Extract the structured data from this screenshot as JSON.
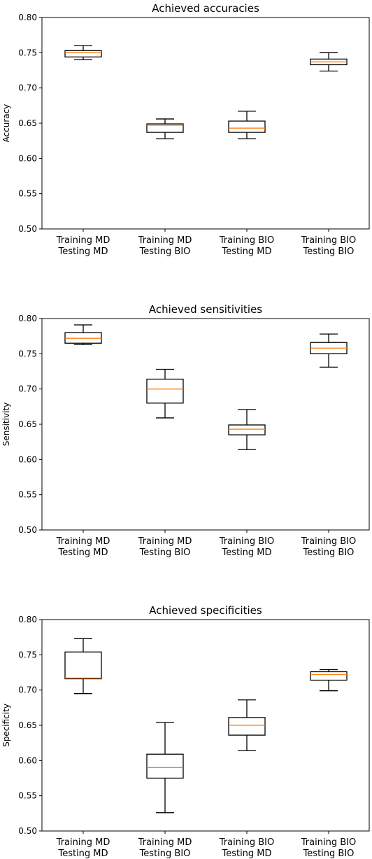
{
  "chart_data": [
    {
      "type": "box",
      "title": "Achieved accuracies",
      "ylabel": "Accuracy",
      "ylim": [
        0.5,
        0.8
      ],
      "yticks": [
        "0.50",
        "0.55",
        "0.60",
        "0.65",
        "0.70",
        "0.75",
        "0.80"
      ],
      "categories": [
        [
          "Training MD",
          "Testing MD"
        ],
        [
          "Training MD",
          "Testing BIO"
        ],
        [
          "Training BIO",
          "Testing MD"
        ],
        [
          "Training BIO",
          "Testing BIO"
        ]
      ],
      "boxes": [
        {
          "whisker_low": 0.74,
          "q1": 0.744,
          "median": 0.75,
          "q3": 0.753,
          "whisker_high": 0.76
        },
        {
          "whisker_low": 0.628,
          "q1": 0.637,
          "median": 0.647,
          "q3": 0.649,
          "whisker_high": 0.656
        },
        {
          "whisker_low": 0.628,
          "q1": 0.637,
          "median": 0.643,
          "q3": 0.653,
          "whisker_high": 0.667
        },
        {
          "whisker_low": 0.724,
          "q1": 0.733,
          "median": 0.737,
          "q3": 0.741,
          "whisker_high": 0.75
        }
      ]
    },
    {
      "type": "box",
      "title": "Achieved sensitivities",
      "ylabel": "Sensitivity",
      "ylim": [
        0.5,
        0.8
      ],
      "yticks": [
        "0.50",
        "0.55",
        "0.60",
        "0.65",
        "0.70",
        "0.75",
        "0.80"
      ],
      "categories": [
        [
          "Training MD",
          "Testing MD"
        ],
        [
          "Training MD",
          "Testing BIO"
        ],
        [
          "Training BIO",
          "Testing MD"
        ],
        [
          "Training BIO",
          "Testing BIO"
        ]
      ],
      "boxes": [
        {
          "whisker_low": 0.763,
          "q1": 0.765,
          "median": 0.772,
          "q3": 0.78,
          "whisker_high": 0.791
        },
        {
          "whisker_low": 0.659,
          "q1": 0.68,
          "median": 0.7,
          "q3": 0.714,
          "whisker_high": 0.728
        },
        {
          "whisker_low": 0.614,
          "q1": 0.635,
          "median": 0.643,
          "q3": 0.649,
          "whisker_high": 0.671
        },
        {
          "whisker_low": 0.731,
          "q1": 0.75,
          "median": 0.758,
          "q3": 0.766,
          "whisker_high": 0.778
        }
      ]
    },
    {
      "type": "box",
      "title": "Achieved specificities",
      "ylabel": "Specificity",
      "ylim": [
        0.5,
        0.8
      ],
      "yticks": [
        "0.50",
        "0.55",
        "0.60",
        "0.65",
        "0.70",
        "0.75",
        "0.80"
      ],
      "categories": [
        [
          "Training MD",
          "Testing MD"
        ],
        [
          "Training MD",
          "Testing BIO"
        ],
        [
          "Training BIO",
          "Testing MD"
        ],
        [
          "Training BIO",
          "Testing BIO"
        ]
      ],
      "boxes": [
        {
          "whisker_low": 0.695,
          "q1": 0.716,
          "median": 0.717,
          "q3": 0.754,
          "whisker_high": 0.773
        },
        {
          "whisker_low": 0.526,
          "q1": 0.575,
          "median": 0.59,
          "q3": 0.609,
          "whisker_high": 0.654
        },
        {
          "whisker_low": 0.614,
          "q1": 0.636,
          "median": 0.65,
          "q3": 0.661,
          "whisker_high": 0.686
        },
        {
          "whisker_low": 0.699,
          "q1": 0.714,
          "median": 0.722,
          "q3": 0.726,
          "whisker_high": 0.729
        }
      ]
    }
  ],
  "colors": {
    "median": "#ff7f0e",
    "box": "#000000",
    "axes": "#000000",
    "background": "#ffffff"
  }
}
